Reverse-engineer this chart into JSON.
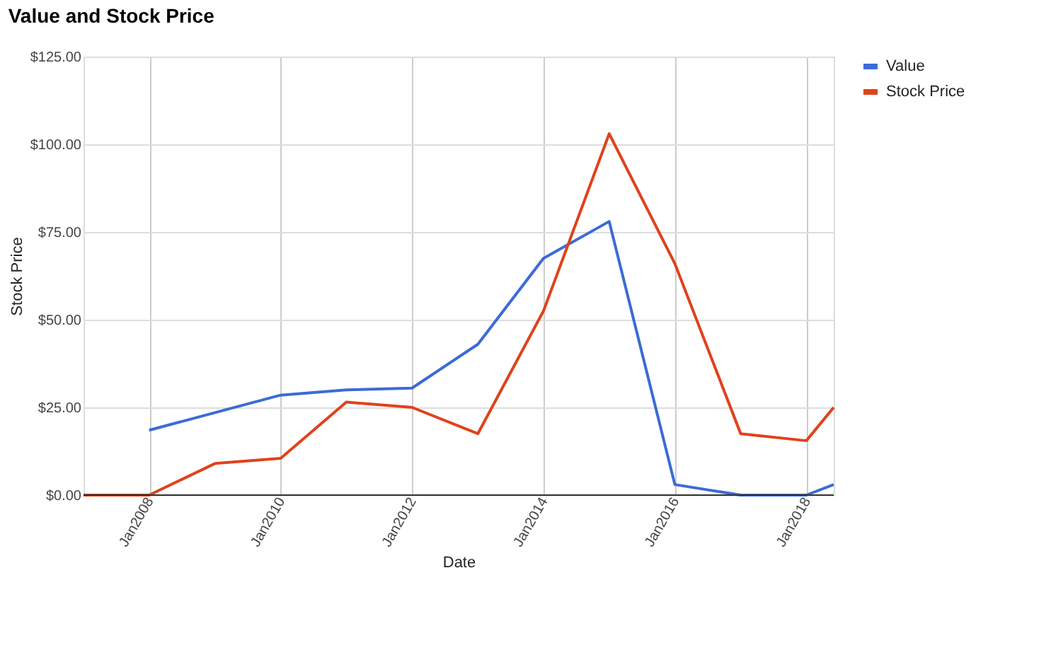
{
  "chart_data": {
    "type": "line",
    "title": "Value and Stock Price",
    "xlabel": "Date",
    "ylabel": "Stock Price",
    "x": [
      "2006-12-31",
      "2007-12-31",
      "2008-12-31",
      "2009-12-31",
      "2010-12-31",
      "2011-12-31",
      "2012-12-31",
      "2013-12-31",
      "2014-12-31",
      "2015-12-31",
      "2016-12-31",
      "2017-12-31",
      "2018-06-01"
    ],
    "series": [
      {
        "name": "Value",
        "color": "#3c6bd6",
        "values": [
          null,
          18.5,
          23.5,
          28.5,
          30,
          30.5,
          43,
          67.5,
          78,
          3,
          0,
          0,
          3
        ]
      },
      {
        "name": "Stock Price",
        "color": "#e0421b",
        "values": [
          0,
          0,
          9,
          10.5,
          26.5,
          25,
          17.5,
          52.5,
          103,
          66,
          17.5,
          15.5,
          25
        ]
      }
    ],
    "xlim": [
      "2006-12-31",
      "2018-06-01"
    ],
    "xticks": [
      {
        "value": "2008-01-01",
        "label": "Jan2008"
      },
      {
        "value": "2010-01-01",
        "label": "Jan2010"
      },
      {
        "value": "2012-01-01",
        "label": "Jan2012"
      },
      {
        "value": "2014-01-01",
        "label": "Jan2014"
      },
      {
        "value": "2016-01-01",
        "label": "Jan2016"
      },
      {
        "value": "2018-01-01",
        "label": "Jan2018"
      }
    ],
    "ylim": [
      0,
      125
    ],
    "yticks": [
      {
        "value": 0,
        "label": "$0.00"
      },
      {
        "value": 25,
        "label": "$25.00"
      },
      {
        "value": 50,
        "label": "$50.00"
      },
      {
        "value": 75,
        "label": "$75.00"
      },
      {
        "value": 100,
        "label": "$100.00"
      },
      {
        "value": 125,
        "label": "$125.00"
      }
    ],
    "grid": true,
    "legend": "top right",
    "marker": "none",
    "line_style": "solid"
  }
}
